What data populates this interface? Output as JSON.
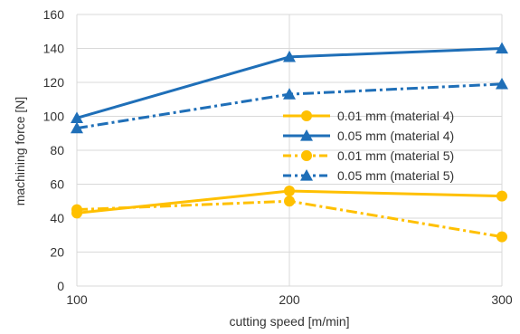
{
  "chart_data": {
    "type": "line",
    "title": "",
    "xlabel": "cutting speed [m/min]",
    "ylabel": "machining force [N]",
    "x": [
      100,
      200,
      300
    ],
    "x_tick_labels": [
      "100",
      "200",
      "300"
    ],
    "xlim": [
      100,
      300
    ],
    "ylim": [
      0,
      160
    ],
    "y_ticks": [
      0,
      20,
      40,
      60,
      80,
      100,
      120,
      140,
      160
    ],
    "grid": true,
    "legend_position": "right",
    "series": [
      {
        "name": "0.01 mm (material 4)",
        "values": [
          43,
          56,
          53
        ],
        "color": "#FFC000",
        "dash": "solid",
        "marker": "circle"
      },
      {
        "name": "0.05 mm (material 4)",
        "values": [
          99,
          135,
          140
        ],
        "color": "#1F6FB8",
        "dash": "solid",
        "marker": "triangle"
      },
      {
        "name": "0.01 mm (material 5)",
        "values": [
          45,
          50,
          29
        ],
        "color": "#FFC000",
        "dash": "dashdot",
        "marker": "circle"
      },
      {
        "name": "0.05 mm (material 5)",
        "values": [
          93,
          113,
          119
        ],
        "color": "#1F6FB8",
        "dash": "dashdot",
        "marker": "triangle"
      }
    ]
  }
}
